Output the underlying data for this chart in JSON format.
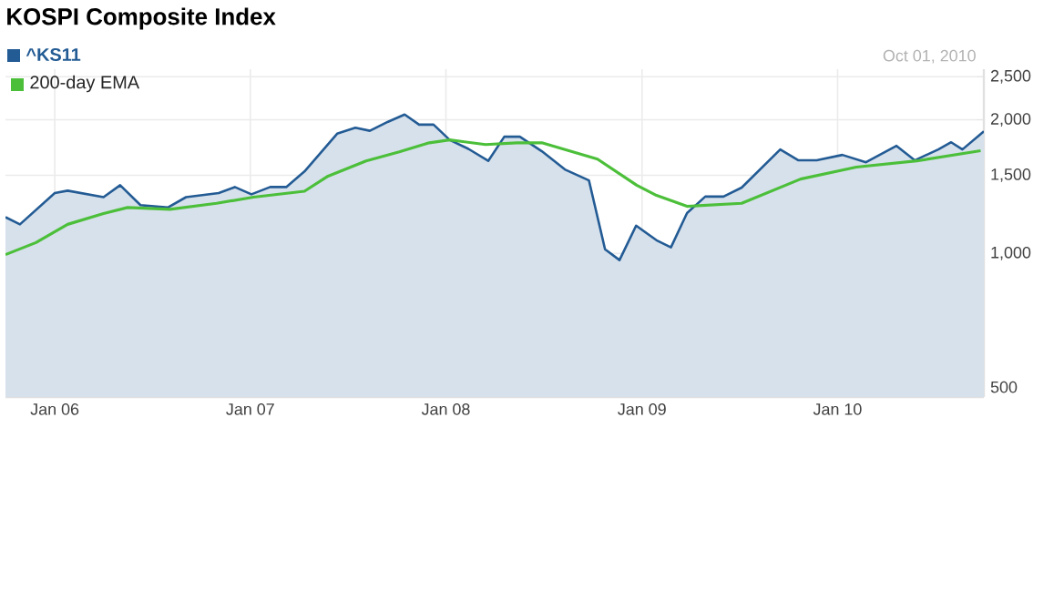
{
  "chart_data": {
    "type": "area",
    "title": "KOSPI Composite Index",
    "annotations": [
      "Oct 01, 2010"
    ],
    "xlim": [
      "2005-10-01",
      "2010-10-01"
    ],
    "xticks": [
      {
        "value": "2006-01-01",
        "label": "Jan 06"
      },
      {
        "value": "2006-04-01",
        "label": null
      },
      {
        "value": "2006-07-01",
        "label": null
      },
      {
        "value": "2006-10-01",
        "label": null
      },
      {
        "value": "2007-01-01",
        "label": "Jan 07"
      },
      {
        "value": "2007-04-01",
        "label": null
      },
      {
        "value": "2007-07-01",
        "label": null
      },
      {
        "value": "2007-10-01",
        "label": null
      },
      {
        "value": "2008-01-01",
        "label": "Jan 08"
      },
      {
        "value": "2008-04-01",
        "label": null
      },
      {
        "value": "2008-07-01",
        "label": null
      },
      {
        "value": "2008-10-01",
        "label": null
      },
      {
        "value": "2009-01-01",
        "label": "Jan 09"
      },
      {
        "value": "2009-04-01",
        "label": null
      },
      {
        "value": "2009-07-01",
        "label": null
      },
      {
        "value": "2009-10-01",
        "label": null
      },
      {
        "value": "2010-01-01",
        "label": "Jan 10"
      },
      {
        "value": "2010-04-01",
        "label": null
      },
      {
        "value": "2010-07-01",
        "label": null
      }
    ],
    "ylim": [
      475,
      2600
    ],
    "yticks": [
      500,
      {
        "value": 1000,
        "label": "1,000"
      },
      {
        "value": 1500,
        "label": "1,500"
      },
      {
        "value": 2000,
        "label": "2,000"
      },
      {
        "value": 2500,
        "label": "2,500"
      }
    ],
    "log": "y",
    "grid": true,
    "legend": "top left",
    "series": [
      {
        "name": "^KS11",
        "color": "#235b94",
        "x": [
          "2005-10-01",
          "2005-10-28",
          "2006-01-01",
          "2006-01-25",
          "2006-04-02",
          "2006-05-03",
          "2006-06-10",
          "2006-07-31",
          "2006-09-03",
          "2006-11-03",
          "2006-12-03",
          "2007-01-03",
          "2007-02-07",
          "2007-03-09",
          "2007-04-12",
          "2007-06-12",
          "2007-07-16",
          "2007-08-12",
          "2007-09-15",
          "2007-10-16",
          "2007-11-12",
          "2007-12-09",
          "2008-01-08",
          "2008-02-12",
          "2008-03-20",
          "2008-04-19",
          "2008-05-18",
          "2008-06-28",
          "2008-08-10",
          "2008-09-24",
          "2008-10-24",
          "2008-11-20",
          "2008-12-21",
          "2009-01-28",
          "2009-02-24",
          "2009-03-26",
          "2009-04-29",
          "2009-06-02",
          "2009-07-06",
          "2009-09-16",
          "2009-10-20",
          "2009-11-23",
          "2010-01-10",
          "2010-02-23",
          "2010-04-21",
          "2010-05-25",
          "2010-07-08",
          "2010-08-01",
          "2010-08-22",
          "2010-10-01"
        ],
        "values": [
          1207,
          1163,
          1368,
          1385,
          1339,
          1425,
          1285,
          1269,
          1339,
          1368,
          1411,
          1359,
          1411,
          1411,
          1530,
          1861,
          1920,
          1889,
          1980,
          2056,
          1950,
          1950,
          1802,
          1720,
          1616,
          1832,
          1832,
          1699,
          1546,
          1460,
          1022,
          966,
          1155,
          1071,
          1032,
          1233,
          1343,
          1343,
          1407,
          1715,
          1621,
          1621,
          1667,
          1605,
          1747,
          1621,
          1715,
          1780,
          1715,
          1884
        ]
      },
      {
        "name": "200-day EMA",
        "type": "line",
        "color": "#4cbf3a",
        "x": [
          "2005-10-01",
          "2005-11-27",
          "2006-01-25",
          "2006-04-02",
          "2006-05-17",
          "2006-08-04",
          "2006-10-30",
          "2007-01-07",
          "2007-04-12",
          "2007-05-26",
          "2007-08-05",
          "2007-10-06",
          "2007-12-01",
          "2008-01-08",
          "2008-03-15",
          "2008-05-12",
          "2008-06-28",
          "2008-10-10",
          "2008-12-22",
          "2009-01-28",
          "2009-03-26",
          "2009-07-06",
          "2009-10-24",
          "2010-02-05",
          "2010-05-29",
          "2010-09-25"
        ],
        "values": [
          994,
          1058,
          1163,
          1230,
          1269,
          1257,
          1297,
          1339,
          1381,
          1493,
          1616,
          1694,
          1775,
          1802,
          1759,
          1775,
          1776,
          1631,
          1425,
          1351,
          1277,
          1297,
          1471,
          1565,
          1616,
          1704
        ]
      }
    ]
  }
}
